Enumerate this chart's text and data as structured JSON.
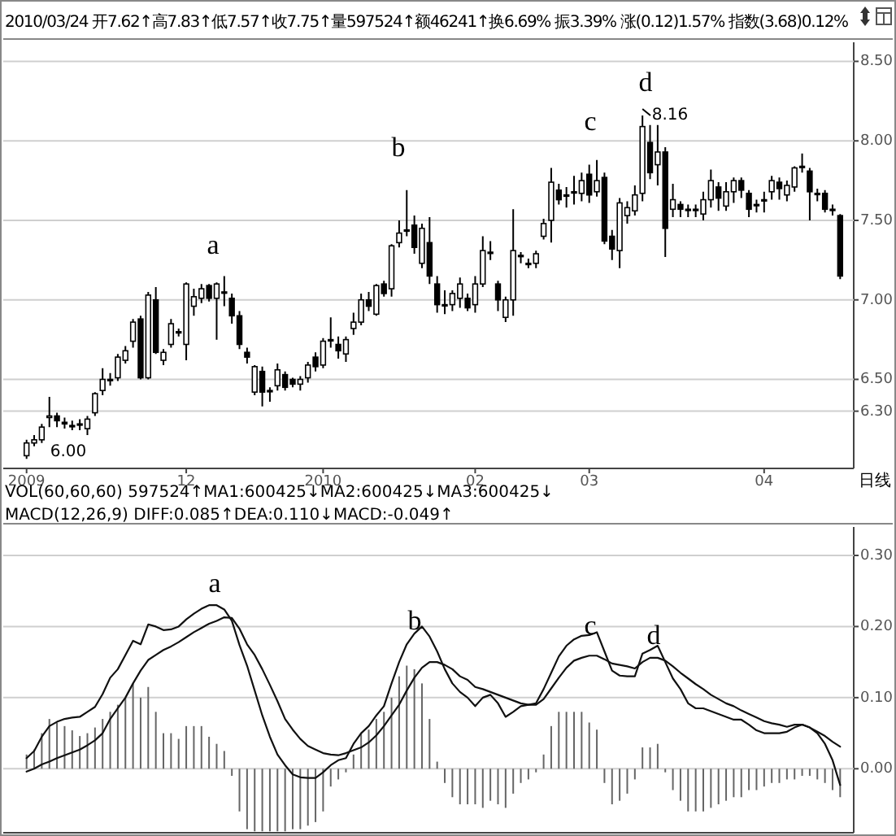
{
  "chart_data": [
    {
      "type": "candlestick",
      "subtitle": "2010/03/24 开7.62↑高7.83↑低7.57↑收7.75↑量597524↑额46241↑换6.69% 振3.39% 涨(0.12)1.57% 指数(3.68)0.12%",
      "categories": [
        "2009",
        null,
        null,
        null,
        null,
        null,
        null,
        null,
        null,
        null,
        null,
        null,
        null,
        null,
        null,
        null,
        null,
        null,
        null,
        null,
        null,
        "12",
        null,
        null,
        null,
        null,
        null,
        null,
        null,
        null,
        null,
        null,
        null,
        null,
        null,
        null,
        null,
        null,
        null,
        "2010",
        null,
        null,
        null,
        null,
        null,
        null,
        null,
        null,
        null,
        null,
        null,
        null,
        null,
        null,
        null,
        null,
        null,
        null,
        null,
        "02",
        null,
        null,
        null,
        null,
        null,
        null,
        null,
        null,
        null,
        null,
        null,
        null,
        null,
        null,
        "03",
        null,
        null,
        null,
        null,
        null,
        null,
        null,
        null,
        null,
        null,
        null,
        null,
        null,
        null,
        null,
        null,
        null,
        null,
        null,
        null,
        null,
        null,
        "04",
        null,
        null,
        null,
        null,
        null,
        null,
        null,
        null,
        null,
        null
      ],
      "ohlc": [
        [
          6.02,
          6.12,
          6.0,
          6.1
        ],
        [
          6.1,
          6.15,
          6.08,
          6.12
        ],
        [
          6.12,
          6.22,
          6.1,
          6.2
        ],
        [
          6.26,
          6.39,
          6.2,
          6.27
        ],
        [
          6.27,
          6.29,
          6.2,
          6.24
        ],
        [
          6.23,
          6.26,
          6.19,
          6.22
        ],
        [
          6.21,
          6.24,
          6.18,
          6.21
        ],
        [
          6.22,
          6.25,
          6.18,
          6.22
        ],
        [
          6.19,
          6.27,
          6.15,
          6.25
        ],
        [
          6.29,
          6.42,
          6.27,
          6.41
        ],
        [
          6.43,
          6.57,
          6.4,
          6.5
        ],
        [
          6.5,
          6.54,
          6.46,
          6.5
        ],
        [
          6.51,
          6.66,
          6.49,
          6.64
        ],
        [
          6.62,
          6.71,
          6.6,
          6.68
        ],
        [
          6.74,
          6.88,
          6.7,
          6.86
        ],
        [
          6.88,
          6.9,
          6.5,
          6.51
        ],
        [
          6.51,
          7.05,
          6.5,
          7.03
        ],
        [
          7.0,
          7.08,
          6.66,
          6.67
        ],
        [
          6.62,
          6.69,
          6.59,
          6.67
        ],
        [
          6.72,
          6.88,
          6.7,
          6.85
        ],
        [
          6.8,
          6.82,
          6.77,
          6.8
        ],
        [
          6.72,
          7.11,
          6.62,
          7.1
        ],
        [
          6.96,
          7.07,
          6.9,
          7.02
        ],
        [
          7.01,
          7.1,
          6.98,
          7.07
        ],
        [
          7.09,
          7.1,
          6.99,
          7.01
        ],
        [
          7.01,
          7.11,
          6.75,
          7.1
        ],
        [
          7.05,
          7.15,
          6.96,
          7.05
        ],
        [
          7.01,
          7.04,
          6.85,
          6.9
        ],
        [
          6.9,
          6.93,
          6.69,
          6.72
        ],
        [
          6.67,
          6.7,
          6.6,
          6.64
        ],
        [
          6.42,
          6.59,
          6.4,
          6.58
        ],
        [
          6.55,
          6.58,
          6.33,
          6.42
        ],
        [
          6.43,
          6.45,
          6.36,
          6.43
        ],
        [
          6.46,
          6.6,
          6.43,
          6.56
        ],
        [
          6.53,
          6.55,
          6.43,
          6.45
        ],
        [
          6.5,
          6.51,
          6.45,
          6.47
        ],
        [
          6.47,
          6.52,
          6.43,
          6.5
        ],
        [
          6.51,
          6.61,
          6.48,
          6.59
        ],
        [
          6.64,
          6.67,
          6.55,
          6.58
        ],
        [
          6.59,
          6.76,
          6.57,
          6.74
        ],
        [
          6.75,
          6.89,
          6.7,
          6.75
        ],
        [
          6.72,
          6.77,
          6.63,
          6.68
        ],
        [
          6.66,
          6.77,
          6.61,
          6.75
        ],
        [
          6.82,
          6.92,
          6.78,
          6.86
        ],
        [
          6.86,
          7.04,
          6.84,
          7.0
        ],
        [
          7.0,
          7.05,
          6.93,
          6.96
        ],
        [
          6.91,
          7.1,
          6.9,
          7.09
        ],
        [
          7.1,
          7.12,
          7.02,
          7.04
        ],
        [
          7.07,
          7.35,
          7.02,
          7.34
        ],
        [
          7.36,
          7.5,
          7.33,
          7.42
        ],
        [
          7.44,
          7.69,
          7.4,
          7.44
        ],
        [
          7.47,
          7.53,
          7.29,
          7.33
        ],
        [
          7.23,
          7.48,
          7.2,
          7.45
        ],
        [
          7.36,
          7.52,
          7.1,
          7.15
        ],
        [
          7.1,
          7.15,
          6.92,
          6.97
        ],
        [
          6.97,
          7.06,
          6.91,
          6.97
        ],
        [
          6.97,
          7.06,
          6.93,
          7.04
        ],
        [
          7.01,
          7.14,
          6.95,
          7.1
        ],
        [
          7.01,
          7.04,
          6.93,
          6.95
        ],
        [
          6.97,
          7.15,
          6.92,
          7.1
        ],
        [
          7.1,
          7.4,
          7.08,
          7.31
        ],
        [
          7.3,
          7.37,
          7.25,
          7.3
        ],
        [
          7.1,
          7.12,
          6.93,
          7.0
        ],
        [
          6.89,
          7.02,
          6.86,
          7.0
        ],
        [
          7.0,
          7.57,
          6.9,
          7.31
        ],
        [
          7.28,
          7.3,
          7.23,
          7.28
        ],
        [
          7.23,
          7.26,
          7.2,
          7.23
        ],
        [
          7.23,
          7.31,
          7.2,
          7.29
        ],
        [
          7.4,
          7.51,
          7.38,
          7.48
        ],
        [
          7.5,
          7.83,
          7.36,
          7.74
        ],
        [
          7.69,
          7.73,
          7.6,
          7.63
        ],
        [
          7.66,
          7.71,
          7.58,
          7.66
        ],
        [
          7.68,
          7.78,
          7.6,
          7.68
        ],
        [
          7.67,
          7.8,
          7.62,
          7.75
        ],
        [
          7.79,
          7.85,
          7.61,
          7.66
        ],
        [
          7.68,
          7.88,
          7.65,
          7.75
        ],
        [
          7.77,
          7.8,
          7.35,
          7.37
        ],
        [
          7.4,
          7.44,
          7.25,
          7.32
        ],
        [
          7.31,
          7.64,
          7.2,
          7.61
        ],
        [
          7.53,
          7.62,
          7.48,
          7.58
        ],
        [
          7.56,
          7.72,
          7.53,
          7.66
        ],
        [
          7.67,
          8.16,
          7.62,
          8.09
        ],
        [
          7.99,
          8.1,
          7.76,
          7.8
        ],
        [
          7.85,
          8.1,
          7.72,
          7.93
        ],
        [
          7.93,
          7.96,
          7.27,
          7.45
        ],
        [
          7.57,
          7.73,
          7.52,
          7.63
        ],
        [
          7.6,
          7.62,
          7.52,
          7.57
        ],
        [
          7.57,
          7.6,
          7.52,
          7.57
        ],
        [
          7.57,
          7.6,
          7.52,
          7.57
        ],
        [
          7.54,
          7.68,
          7.5,
          7.63
        ],
        [
          7.63,
          7.82,
          7.58,
          7.75
        ],
        [
          7.71,
          7.74,
          7.56,
          7.64
        ],
        [
          7.59,
          7.74,
          7.56,
          7.68
        ],
        [
          7.68,
          7.77,
          7.61,
          7.75
        ],
        [
          7.75,
          7.77,
          7.64,
          7.69
        ],
        [
          7.67,
          7.69,
          7.52,
          7.57
        ],
        [
          7.6,
          7.63,
          7.55,
          7.6
        ],
        [
          7.63,
          7.68,
          7.55,
          7.63
        ],
        [
          7.68,
          7.78,
          7.63,
          7.75
        ],
        [
          7.74,
          7.77,
          7.63,
          7.7
        ],
        [
          7.66,
          7.75,
          7.62,
          7.72
        ],
        [
          7.71,
          7.84,
          7.68,
          7.83
        ],
        [
          7.84,
          7.92,
          7.8,
          7.84
        ],
        [
          7.81,
          7.83,
          7.5,
          7.68
        ],
        [
          7.67,
          7.7,
          7.62,
          7.67
        ],
        [
          7.67,
          7.69,
          7.55,
          7.57
        ],
        [
          7.57,
          7.6,
          7.53,
          7.57
        ],
        [
          7.53,
          7.54,
          7.13,
          7.15
        ]
      ],
      "ylim": [
        5.94,
        8.62
      ],
      "yticks": [
        {
          "value": 6.3,
          "label": "6.30"
        },
        {
          "value": 6.5,
          "label": "6.50"
        },
        {
          "value": 7,
          "label": "7.00"
        },
        {
          "value": 7.5,
          "label": "7.50"
        },
        {
          "value": 8,
          "label": "8.00"
        },
        {
          "value": 8.5,
          "label": "8.50"
        }
      ],
      "grid": "y",
      "annotations": [
        "日线",
        "6.00",
        "8.16",
        "a",
        "b",
        "c",
        "d"
      ]
    },
    {
      "type": "line",
      "title": "VOL(60,60,60) 597524↑MA1:600425↓MA2:600425↓MA3:600425↓",
      "subtitle": "MACD(12,26,9) DIFF:0.085↑DEA:0.110↓MACD:-0.049↑",
      "categories": [
        null,
        null,
        null,
        null,
        null,
        null,
        null,
        null,
        null,
        null,
        null,
        null,
        null,
        null,
        null,
        null,
        null,
        null,
        null,
        null,
        null,
        null,
        null,
        null,
        null,
        null,
        null,
        null,
        null,
        null,
        null,
        null,
        null,
        null,
        null,
        null,
        null,
        null,
        null,
        null,
        null,
        null,
        null,
        null,
        null,
        null,
        null,
        null,
        null,
        null,
        null,
        null,
        null,
        null,
        null,
        null,
        null,
        null,
        null,
        null,
        null,
        null,
        null,
        null,
        null,
        null,
        null,
        null,
        null,
        null,
        null,
        null,
        null,
        null,
        null,
        null,
        null,
        null,
        null,
        null,
        null,
        null,
        null,
        null,
        null,
        null,
        null,
        null,
        null,
        null,
        null,
        null,
        null,
        null,
        null,
        null,
        null,
        null,
        null,
        null,
        null,
        null,
        null,
        null,
        null,
        null,
        null,
        null
      ],
      "series": [
        {
          "type": "bar",
          "color": "#666666",
          "values": [
            0.02,
            0.027,
            0.05,
            0.07,
            0.065,
            0.06,
            0.054,
            0.046,
            0.05,
            0.058,
            0.07,
            0.08,
            0.09,
            0.1,
            0.12,
            0.1,
            0.115,
            0.08,
            0.05,
            0.05,
            0.042,
            0.06,
            0.06,
            0.06,
            0.045,
            0.035,
            0.025,
            -0.01,
            -0.06,
            -0.085,
            -0.088,
            -0.088,
            -0.088,
            -0.088,
            -0.088,
            -0.085,
            -0.085,
            -0.08,
            -0.075,
            -0.06,
            -0.025,
            -0.015,
            -0.005,
            0.02,
            0.05,
            0.055,
            0.07,
            0.08,
            0.1,
            0.13,
            0.145,
            0.14,
            0.12,
            0.07,
            0.01,
            -0.02,
            -0.04,
            -0.05,
            -0.05,
            -0.05,
            -0.055,
            -0.045,
            -0.05,
            -0.055,
            -0.035,
            -0.02,
            -0.015,
            -0.005,
            0.02,
            0.06,
            0.08,
            0.08,
            0.08,
            0.08,
            0.065,
            0.055,
            -0.02,
            -0.05,
            -0.045,
            -0.035,
            -0.015,
            0.03,
            0.03,
            0.035,
            -0.005,
            -0.03,
            -0.045,
            -0.06,
            -0.06,
            -0.06,
            -0.055,
            -0.05,
            -0.045,
            -0.04,
            -0.04,
            -0.03,
            -0.03,
            -0.025,
            -0.02,
            -0.02,
            -0.015,
            -0.015,
            -0.01,
            -0.01,
            -0.015,
            -0.02,
            -0.03,
            -0.04
          ]
        },
        {
          "type": "line",
          "color": "#111111",
          "values": [
            0.015,
            0.025,
            0.045,
            0.06,
            0.066,
            0.07,
            0.072,
            0.073,
            0.08,
            0.087,
            0.105,
            0.128,
            0.14,
            0.16,
            0.18,
            0.175,
            0.203,
            0.2,
            0.195,
            0.196,
            0.2,
            0.21,
            0.218,
            0.225,
            0.23,
            0.23,
            0.224,
            0.208,
            0.174,
            0.145,
            0.11,
            0.075,
            0.045,
            0.02,
            0.005,
            -0.008,
            -0.012,
            -0.013,
            -0.013,
            -0.005,
            0.005,
            0.012,
            0.015,
            0.035,
            0.05,
            0.06,
            0.075,
            0.088,
            0.12,
            0.15,
            0.175,
            0.19,
            0.2,
            0.186,
            0.165,
            0.14,
            0.12,
            0.108,
            0.1,
            0.088,
            0.1,
            0.104,
            0.092,
            0.073,
            0.08,
            0.088,
            0.09,
            0.092,
            0.112,
            0.135,
            0.158,
            0.173,
            0.182,
            0.187,
            0.188,
            0.192,
            0.165,
            0.138,
            0.131,
            0.13,
            0.13,
            0.162,
            0.167,
            0.173,
            0.15,
            0.127,
            0.112,
            0.092,
            0.085,
            0.085,
            0.081,
            0.077,
            0.073,
            0.069,
            0.069,
            0.062,
            0.054,
            0.05,
            0.05,
            0.05,
            0.052,
            0.058,
            0.062,
            0.058,
            0.05,
            0.035,
            0.012,
            -0.023
          ]
        },
        {
          "type": "line",
          "color": "#111111",
          "values": [
            -0.004,
            0.0,
            0.006,
            0.01,
            0.015,
            0.019,
            0.023,
            0.027,
            0.033,
            0.04,
            0.05,
            0.07,
            0.085,
            0.1,
            0.12,
            0.138,
            0.153,
            0.16,
            0.167,
            0.172,
            0.178,
            0.185,
            0.192,
            0.198,
            0.204,
            0.208,
            0.213,
            0.212,
            0.197,
            0.175,
            0.16,
            0.14,
            0.118,
            0.095,
            0.07,
            0.055,
            0.042,
            0.032,
            0.027,
            0.022,
            0.02,
            0.019,
            0.022,
            0.026,
            0.03,
            0.037,
            0.047,
            0.06,
            0.075,
            0.09,
            0.11,
            0.128,
            0.142,
            0.15,
            0.15,
            0.146,
            0.14,
            0.13,
            0.125,
            0.115,
            0.112,
            0.108,
            0.104,
            0.1,
            0.096,
            0.092,
            0.09,
            0.09,
            0.098,
            0.113,
            0.128,
            0.142,
            0.152,
            0.156,
            0.159,
            0.159,
            0.154,
            0.148,
            0.146,
            0.144,
            0.141,
            0.15,
            0.156,
            0.156,
            0.152,
            0.144,
            0.135,
            0.127,
            0.119,
            0.112,
            0.104,
            0.098,
            0.092,
            0.088,
            0.082,
            0.077,
            0.072,
            0.067,
            0.064,
            0.062,
            0.059,
            0.062,
            0.062,
            0.058,
            0.052,
            0.046,
            0.038,
            0.031
          ]
        }
      ],
      "ylim": [
        -0.09,
        0.34
      ],
      "yticks": [
        {
          "value": 0,
          "label": "0.00"
        },
        {
          "value": 0.1,
          "label": "0.10"
        },
        {
          "value": 0.2,
          "label": "0.20"
        },
        {
          "value": 0.3,
          "label": "0.30"
        }
      ],
      "grid": "y",
      "tick_labels": "y",
      "annotations": [
        "a",
        "b",
        "c",
        "d"
      ]
    }
  ]
}
